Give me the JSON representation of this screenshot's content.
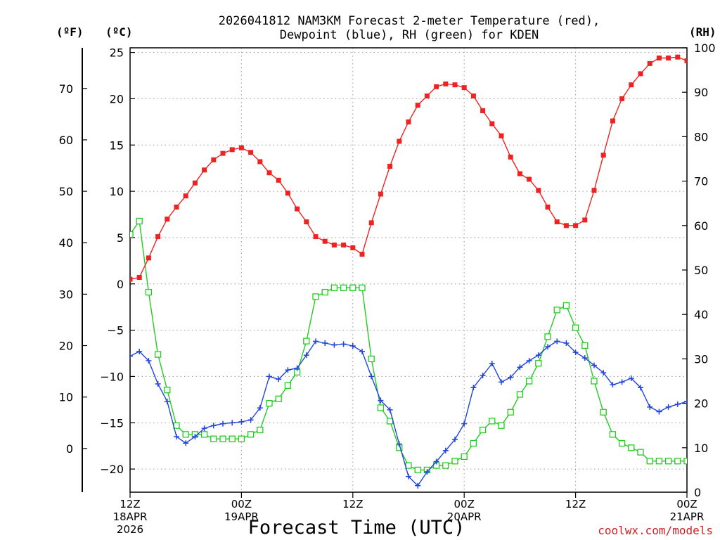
{
  "chart_data": {
    "type": "line",
    "title_lines": [
      "2026041812 NAM3KM Forecast 2-meter Temperature (red),",
      "Dewpoint (blue), RH (green) for KDEN"
    ],
    "unit_labels": {
      "fahrenheit": "(ºF)",
      "celsius": "(ºC)",
      "rh": "(RH)"
    },
    "xlabel": "Forecast Time (UTC)",
    "credit": "coolwx.com/models",
    "x_range_hours": [
      0,
      60
    ],
    "x_ticks": [
      {
        "hour": 0,
        "lines": [
          "12Z",
          "18APR",
          "2026"
        ]
      },
      {
        "hour": 12,
        "lines": [
          "00Z",
          "19APR"
        ]
      },
      {
        "hour": 24,
        "lines": [
          "12Z"
        ]
      },
      {
        "hour": 36,
        "lines": [
          "00Z",
          "20APR"
        ]
      },
      {
        "hour": 48,
        "lines": [
          "12Z"
        ]
      },
      {
        "hour": 60,
        "lines": [
          "00Z",
          "21APR"
        ]
      }
    ],
    "celsius_axis": {
      "range": [
        -22.5,
        25.5
      ],
      "ticks": [
        -20,
        -15,
        -10,
        -5,
        0,
        5,
        10,
        15,
        20,
        25
      ],
      "labels": [
        "−20",
        "−15",
        "−10",
        "−5",
        "0",
        "5",
        "10",
        "15",
        "20",
        "25"
      ]
    },
    "fahrenheit_axis": {
      "ticks": [
        0,
        10,
        20,
        30,
        40,
        50,
        60,
        70
      ],
      "labels": [
        "0",
        "10",
        "20",
        "30",
        "40",
        "50",
        "60",
        "70"
      ]
    },
    "rh_axis": {
      "range": [
        0,
        100
      ],
      "ticks": [
        0,
        10,
        20,
        30,
        40,
        50,
        60,
        70,
        80,
        90,
        100
      ],
      "labels": [
        "0",
        "10",
        "20",
        "30",
        "40",
        "50",
        "60",
        "70",
        "80",
        "90",
        "100"
      ]
    },
    "series": [
      {
        "name": "2-meter Temperature",
        "unit": "C",
        "axis": "celsius",
        "color": "#ee2222",
        "marker": "filled-square",
        "values": [
          0.5,
          0.7,
          2.8,
          5.1,
          7.0,
          8.3,
          9.5,
          10.9,
          12.3,
          13.4,
          14.1,
          14.5,
          14.7,
          14.2,
          13.2,
          12.0,
          11.2,
          9.8,
          8.1,
          6.7,
          5.1,
          4.6,
          4.2,
          4.2,
          3.9,
          3.2,
          6.6,
          9.7,
          12.7,
          15.4,
          17.5,
          19.3,
          20.3,
          21.3,
          21.6,
          21.5,
          21.2,
          20.3,
          18.7,
          17.3,
          16.0,
          13.7,
          11.9,
          11.3,
          10.1,
          8.3,
          6.7,
          6.3,
          6.3,
          6.9,
          10.1,
          13.9,
          17.6,
          20.0,
          21.5,
          22.7,
          23.8,
          24.4,
          24.4,
          24.5,
          24.1
        ]
      },
      {
        "name": "Dewpoint",
        "unit": "C",
        "axis": "celsius",
        "color": "#2244dd",
        "marker": "plus",
        "values": [
          -7.8,
          -7.3,
          -8.3,
          -10.8,
          -12.7,
          -16.5,
          -17.2,
          -16.5,
          -15.6,
          -15.3,
          -15.1,
          -15.0,
          -14.9,
          -14.7,
          -13.4,
          -10.0,
          -10.3,
          -9.3,
          -9.1,
          -7.7,
          -6.2,
          -6.4,
          -6.6,
          -6.5,
          -6.7,
          -7.3,
          -10.0,
          -12.6,
          -13.6,
          -17.3,
          -20.8,
          -21.8,
          -20.3,
          -19.2,
          -18.0,
          -16.8,
          -15.1,
          -11.2,
          -9.9,
          -8.6,
          -10.6,
          -10.1,
          -9.0,
          -8.3,
          -7.7,
          -6.8,
          -6.2,
          -6.4,
          -7.4,
          -8.0,
          -8.8,
          -9.6,
          -10.9,
          -10.6,
          -10.2,
          -11.2,
          -13.3,
          -13.8,
          -13.3,
          -13.0,
          -12.7
        ]
      },
      {
        "name": "RH",
        "unit": "%",
        "axis": "rh",
        "color": "#22cc22",
        "marker": "open-square",
        "values": [
          58,
          61,
          45,
          31,
          23,
          15,
          13,
          13,
          13,
          12,
          12,
          12,
          12,
          13,
          14,
          20,
          21,
          24,
          27,
          34,
          44,
          45,
          46,
          46,
          46,
          46,
          30,
          19,
          16,
          10,
          6,
          5,
          5,
          6,
          6,
          7,
          8,
          11,
          14,
          16,
          15,
          18,
          22,
          25,
          29,
          35,
          41,
          42,
          37,
          33,
          25,
          18,
          13,
          11,
          10,
          9,
          7,
          7,
          7,
          7,
          7
        ]
      }
    ]
  }
}
